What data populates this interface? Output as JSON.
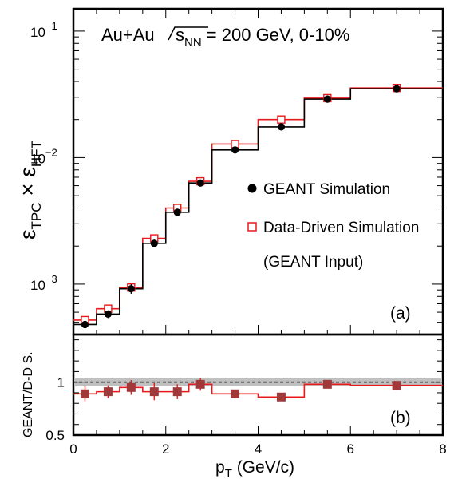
{
  "chart_data": [
    {
      "type": "line",
      "panel_label": "(a)",
      "title": "Au+Au √s_NN = 200 GeV, 0-10%",
      "title_parts": {
        "system": "Au+Au",
        "sqrt": "s",
        "sub": "NN",
        "rest": " = 200 GeV, 0-10%"
      },
      "ylabel_parts": {
        "eps": "ε",
        "sub1": "TPC",
        "times": " × ",
        "sub2": "HFT"
      },
      "yscale": "log",
      "ylim": [
        0.0004,
        0.15
      ],
      "xlim": [
        0,
        8
      ],
      "ytick_labels": [
        {
          "value": 0.1,
          "base": "10",
          "exp": "−1"
        },
        {
          "value": 0.01,
          "base": "10",
          "exp": "−2"
        },
        {
          "value": 0.001,
          "base": "10",
          "exp": "−3"
        }
      ],
      "bin_edges": [
        0,
        0.5,
        1.0,
        1.5,
        2.0,
        2.5,
        3.0,
        4.0,
        5.0,
        6.0,
        8.0
      ],
      "series": [
        {
          "name": "GEANT Simulation",
          "color": "#000000",
          "marker": "filled-circle",
          "x": [
            0.25,
            0.75,
            1.25,
            1.75,
            2.25,
            2.75,
            3.5,
            4.5,
            5.5,
            7.0
          ],
          "y": [
            0.00048,
            0.00058,
            0.00092,
            0.0021,
            0.0037,
            0.0063,
            0.0115,
            0.0175,
            0.029,
            0.035
          ],
          "yerr": [
            3e-05,
            4e-05,
            8e-05,
            0.00015,
            0.00025,
            0.0003,
            0.0005,
            0.0006,
            0.0012,
            0.0012
          ]
        },
        {
          "name": "Data-Driven Simulation",
          "color": "#e8191b",
          "marker": "open-square",
          "x": [
            0.25,
            0.75,
            1.25,
            1.75,
            2.25,
            2.75,
            3.5,
            4.5,
            5.5,
            7.0
          ],
          "y": [
            0.00052,
            0.00064,
            0.00094,
            0.0023,
            0.004,
            0.0065,
            0.0128,
            0.02,
            0.0295,
            0.0355
          ]
        }
      ],
      "legend_note": "(GEANT Input)"
    },
    {
      "type": "line",
      "panel_label": "(b)",
      "ylabel": "GEANT/D-D S.",
      "xlabel_parts": {
        "p": "p",
        "sub": "T",
        "rest": " (GeV/c)"
      },
      "xlim": [
        0,
        8
      ],
      "ylim": [
        0.5,
        1.45
      ],
      "xtick_labels": [
        "0",
        "2",
        "4",
        "6",
        "8"
      ],
      "ytick_labels": [
        "0.5",
        "1"
      ],
      "bin_edges": [
        0,
        0.5,
        1.0,
        1.5,
        2.0,
        2.5,
        3.0,
        4.0,
        5.0,
        6.0,
        8.0
      ],
      "reference_line": 1.0,
      "band": [
        0.96,
        1.04
      ],
      "series": [
        {
          "name": "GEANT/D-D S.",
          "color": "#e8191b",
          "marker_color": "#a03a3a",
          "marker": "filled-square",
          "x": [
            0.25,
            0.75,
            1.25,
            1.75,
            2.25,
            2.75,
            3.5,
            4.5,
            5.5,
            7.0
          ],
          "y": [
            0.89,
            0.91,
            0.95,
            0.91,
            0.91,
            0.98,
            0.89,
            0.86,
            0.98,
            0.97
          ],
          "yerr": [
            0.07,
            0.06,
            0.07,
            0.08,
            0.07,
            0.06,
            0.03,
            0.03,
            0.03,
            0.02
          ]
        }
      ]
    }
  ]
}
